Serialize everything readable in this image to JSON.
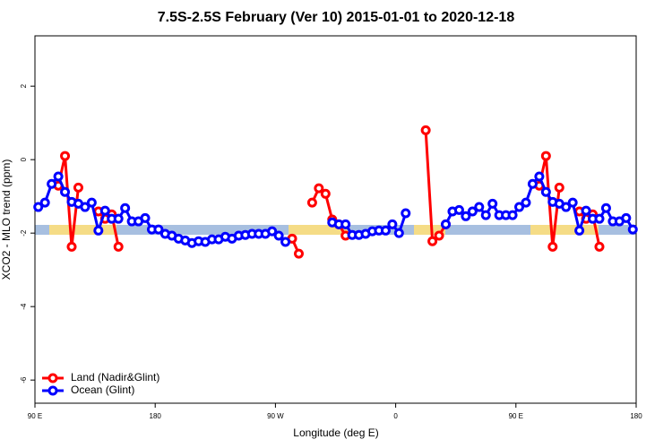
{
  "chart_data": {
    "type": "line",
    "title": "7.5S-2.5S February (Ver 10)   2015-01-01 to 2020-12-18",
    "x_label": "Longitude (deg E)",
    "y_label": "XCO2 - MLO trend (ppm)",
    "x": [
      92.5,
      97.5,
      102.5,
      107.5,
      112.5,
      117.5,
      122.5,
      127.5,
      132.5,
      137.5,
      142.5,
      147.5,
      152.5,
      157.5,
      162.5,
      167.5,
      172.5,
      177.5,
      182.5,
      187.5,
      192.5,
      197.5,
      202.5,
      207.5,
      212.5,
      217.5,
      222.5,
      227.5,
      232.5,
      237.5,
      242.5,
      247.5,
      252.5,
      257.5,
      262.5,
      267.5,
      272.5,
      277.5,
      282.5,
      287.5,
      292.5,
      297.5,
      302.5,
      307.5,
      312.5,
      317.5,
      322.5,
      327.5,
      332.5,
      337.5,
      342.5,
      347.5,
      352.5,
      357.5,
      362.5,
      367.5,
      372.5,
      377.5,
      382.5,
      387.5,
      392.5,
      397.5,
      402.5,
      407.5,
      412.5,
      417.5,
      422.5,
      427.5,
      432.5,
      437.5,
      442.5,
      447.5,
      452.5,
      457.5,
      462.5,
      467.5,
      472.5,
      477.5,
      482.5,
      487.5,
      492.5,
      497.5,
      502.5,
      507.5,
      512.5,
      517.5,
      522.5,
      527.5,
      532.5,
      537.5
    ],
    "series": [
      {
        "name": "Land (Nadir&Glint)",
        "color": "#ff0000",
        "values": [
          null,
          null,
          null,
          -0.71,
          0.1,
          -2.37,
          -0.76,
          null,
          null,
          -1.41,
          -1.61,
          -1.49,
          -2.37,
          null,
          null,
          null,
          null,
          null,
          null,
          null,
          null,
          null,
          null,
          null,
          null,
          null,
          null,
          null,
          null,
          null,
          null,
          null,
          null,
          null,
          null,
          null,
          null,
          null,
          -2.15,
          -2.56,
          null,
          -1.17,
          -0.78,
          -0.93,
          -1.63,
          -1.76,
          -2.07,
          null,
          null,
          null,
          null,
          null,
          null,
          null,
          null,
          null,
          null,
          null,
          0.8,
          -2.22,
          -2.07,
          -1.76,
          null,
          null,
          null,
          null,
          null,
          null,
          null,
          null,
          null,
          null,
          null,
          null,
          null,
          -0.71,
          0.1,
          -2.37,
          -0.76,
          null,
          null,
          -1.41,
          -1.61,
          -1.49,
          -2.37,
          null,
          null,
          null,
          null,
          null
        ]
      },
      {
        "name": "Ocean (Glint)",
        "color": "#0000ff",
        "values": [
          -1.29,
          -1.17,
          -0.66,
          -0.46,
          -0.88,
          -1.15,
          -1.2,
          -1.29,
          -1.17,
          -1.93,
          -1.39,
          -1.61,
          -1.61,
          -1.32,
          -1.68,
          -1.68,
          -1.59,
          -1.9,
          -1.9,
          -2.02,
          -2.07,
          -2.15,
          -2.2,
          -2.27,
          -2.22,
          -2.24,
          -2.17,
          -2.17,
          -2.1,
          -2.15,
          -2.07,
          -2.05,
          -2.02,
          -2.02,
          -2.02,
          -1.95,
          -2.07,
          -2.24,
          null,
          null,
          null,
          null,
          null,
          null,
          -1.71,
          -1.76,
          -1.76,
          -2.05,
          -2.05,
          -2.02,
          -1.95,
          -1.93,
          -1.93,
          -1.76,
          -2.0,
          -1.46,
          null,
          null,
          null,
          null,
          null,
          -1.76,
          -1.41,
          -1.37,
          -1.54,
          -1.41,
          -1.29,
          -1.51,
          -1.2,
          -1.51,
          -1.51,
          -1.51,
          -1.29,
          -1.17,
          -0.66,
          -0.46,
          -0.88,
          -1.15,
          -1.2,
          -1.29,
          -1.17,
          -1.93,
          -1.39,
          -1.61,
          -1.61,
          -1.32,
          -1.68,
          -1.68,
          -1.59,
          -1.9
        ]
      }
    ],
    "xlim": [
      90,
      540
    ],
    "xticks": [
      {
        "value": 90,
        "label": "90 E"
      },
      180,
      {
        "value": 270,
        "label": "90 W"
      },
      {
        "value": 360,
        "label": "0"
      },
      {
        "value": 450,
        "label": "90 E"
      },
      {
        "value": 540,
        "label": "180"
      }
    ],
    "ylim": [
      -6.63,
      3.37
    ],
    "yticks": [
      -6,
      -4,
      -2,
      0,
      2
    ],
    "legend": "bottom-left"
  }
}
